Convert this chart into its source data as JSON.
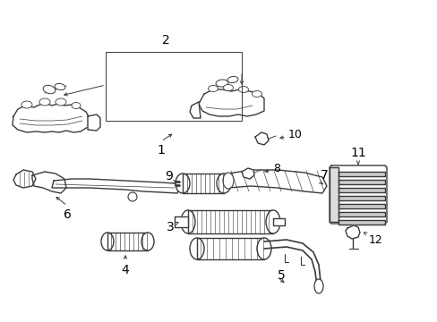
{
  "background": "#ffffff",
  "line_color": "#3a3a3a",
  "label_color": "#000000",
  "figsize": [
    4.89,
    3.6
  ],
  "dpi": 100,
  "lw_main": 1.0,
  "lw_thin": 0.5,
  "lw_label": 0.7
}
